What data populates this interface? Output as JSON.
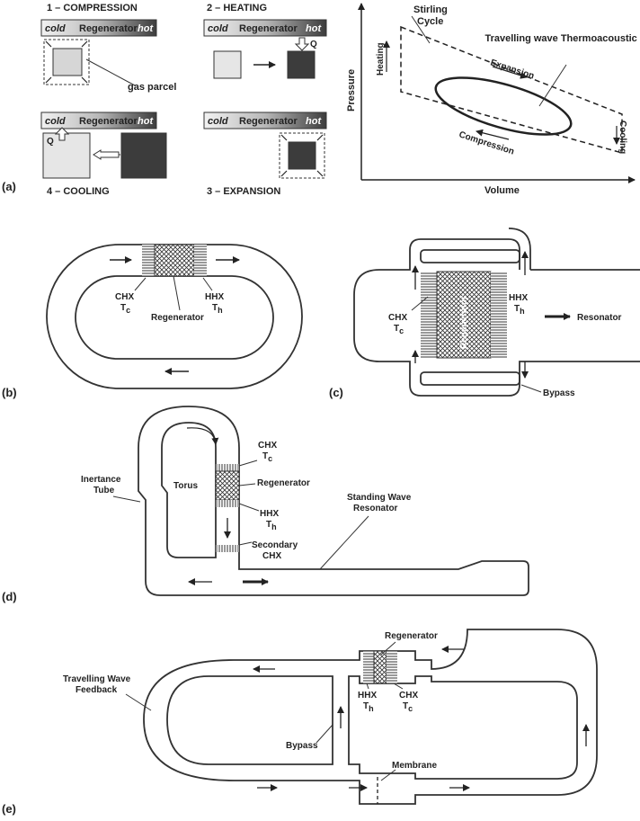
{
  "colors": {
    "hot": "#3c3c3c",
    "cold": "#d6d6d6",
    "regenerator_fill": "#bdbdbd",
    "ink": "#222222"
  },
  "panel_labels": {
    "a": "(a)",
    "b": "(b)",
    "c": "(c)",
    "d": "(d)",
    "e": "(e)"
  },
  "panel_a": {
    "steps": {
      "s1": "1 – COMPRESSION",
      "s2": "2 – HEATING",
      "s3": "3 – EXPANSION",
      "s4": "4 – COOLING"
    },
    "bar": {
      "cold": "cold",
      "mid": "Regenerator",
      "hot": "hot"
    },
    "gas_parcel": "gas parcel",
    "heat_q": "Q",
    "pv": {
      "xlabel": "Volume",
      "ylabel": "Pressure",
      "stirling": "Stirling Cycle",
      "engine": "Travelling wave Thermoacoustic Engine",
      "expansion": "Expansion",
      "compression": "Compression",
      "heating": "Heating",
      "cooling": "Cooling"
    }
  },
  "panel_b": {
    "chx": "CHX",
    "tc": "T",
    "tc_sub": "c",
    "hhx": "HHX",
    "th": "T",
    "th_sub": "h",
    "regenerator": "Regenerator"
  },
  "panel_c": {
    "chx": "CHX",
    "tc": "T",
    "tc_sub": "c",
    "hhx": "HHX",
    "th": "T",
    "th_sub": "h",
    "regenerator": "Regenerator",
    "resonator": "Resonator",
    "bypass": "Bypass"
  },
  "panel_d": {
    "chx": "CHX",
    "tc": "T",
    "tc_sub": "c",
    "hhx": "HHX",
    "th": "T",
    "th_sub": "h",
    "regenerator": "Regenerator",
    "torus": "Torus",
    "inertance": "Inertance",
    "tube": "Tube",
    "secondary": "Secondary",
    "secondary_chx": "CHX",
    "standing": "Standing Wave",
    "resonator": "Resonator"
  },
  "panel_e": {
    "feedback1": "Travelling Wave",
    "feedback2": "Feedback",
    "regenerator": "Regenerator",
    "bypass": "Bypass",
    "hhx": "HHX",
    "th": "T",
    "th_sub": "h",
    "chx": "CHX",
    "tc": "T",
    "tc_sub": "c",
    "membrane": "Membrane"
  }
}
